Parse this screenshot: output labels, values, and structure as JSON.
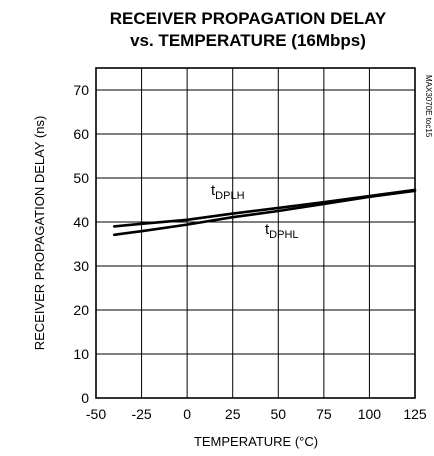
{
  "chart_data": {
    "type": "line",
    "title_line1": "RECEIVER PROPAGATION DELAY",
    "title_line2": "vs. TEMPERATURE (16Mbps)",
    "xlabel": "TEMPERATURE (°C)",
    "ylabel": "RECEIVER PROPAGATION DELAY (ns)",
    "watermark": "MAX3070E toc15",
    "xlim": [
      -50,
      125
    ],
    "ylim": [
      0,
      75
    ],
    "x_ticks": [
      "-50",
      "-25",
      "0",
      "25",
      "50",
      "75",
      "100",
      "125"
    ],
    "y_ticks": [
      "0",
      "10",
      "20",
      "30",
      "40",
      "50",
      "60",
      "70"
    ],
    "grid": true,
    "series": [
      {
        "name": "tDPLH",
        "label_main": "t",
        "label_sub": "DPLH",
        "x": [
          -40,
          -25,
          0,
          25,
          50,
          75,
          100,
          125
        ],
        "y": [
          39.0,
          39.6,
          40.5,
          41.9,
          43.2,
          44.5,
          45.9,
          47.3
        ]
      },
      {
        "name": "tDPHL",
        "label_main": "t",
        "label_sub": "DPHL",
        "x": [
          -40,
          -25,
          0,
          25,
          50,
          75,
          100,
          125
        ],
        "y": [
          37.1,
          37.9,
          39.4,
          41.1,
          42.5,
          44.1,
          45.7,
          47.1
        ]
      }
    ]
  }
}
